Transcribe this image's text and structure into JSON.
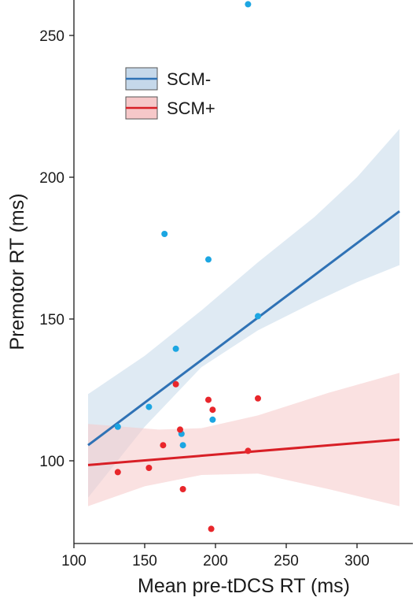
{
  "chart_data": {
    "type": "scatter",
    "xlabel": "Mean pre-tDCS RT (ms)",
    "ylabel": "Premotor RT (ms)",
    "xlim": [
      100,
      330
    ],
    "ylim": [
      70,
      262
    ],
    "xticks": [
      "100",
      "150",
      "200",
      "250",
      "300"
    ],
    "yticks": [
      "100",
      "150",
      "200",
      "250"
    ],
    "legend_position": "upper-left",
    "grid": false,
    "series": [
      {
        "name": "SCM-",
        "point_color": "#1ca6e2",
        "line_color": "#2f72b5",
        "band_color": "#c5d8ea",
        "points": [
          {
            "x": 131,
            "y": 112
          },
          {
            "x": 153,
            "y": 119
          },
          {
            "x": 164,
            "y": 180
          },
          {
            "x": 172,
            "y": 139.5
          },
          {
            "x": 176,
            "y": 109.5
          },
          {
            "x": 177,
            "y": 105.5
          },
          {
            "x": 195,
            "y": 171
          },
          {
            "x": 198,
            "y": 114.5
          },
          {
            "x": 223,
            "y": 261
          },
          {
            "x": 230,
            "y": 151
          }
        ],
        "fit": {
          "x0": 110,
          "y0": 105.5,
          "x1": 330,
          "y1": 188
        },
        "ci_upper": [
          [
            110,
            123.5
          ],
          [
            150,
            137
          ],
          [
            190,
            153
          ],
          [
            230,
            170
          ],
          [
            270,
            186
          ],
          [
            300,
            200
          ],
          [
            330,
            217
          ]
        ],
        "ci_lower": [
          [
            110,
            87
          ],
          [
            150,
            112
          ],
          [
            190,
            133
          ],
          [
            230,
            146
          ],
          [
            270,
            156
          ],
          [
            300,
            163
          ],
          [
            330,
            169
          ]
        ]
      },
      {
        "name": "SCM+",
        "point_color": "#e8262b",
        "line_color": "#d81f26",
        "band_color": "#f6c8c9",
        "points": [
          {
            "x": 131,
            "y": 96
          },
          {
            "x": 153,
            "y": 97.5
          },
          {
            "x": 163,
            "y": 105.5
          },
          {
            "x": 172,
            "y": 127
          },
          {
            "x": 175,
            "y": 111
          },
          {
            "x": 177,
            "y": 90
          },
          {
            "x": 195,
            "y": 121.5
          },
          {
            "x": 197,
            "y": 76
          },
          {
            "x": 198,
            "y": 118
          },
          {
            "x": 223,
            "y": 103.5
          },
          {
            "x": 230,
            "y": 122
          }
        ],
        "fit": {
          "x0": 110,
          "y0": 98.5,
          "x1": 330,
          "y1": 107.5
        },
        "ci_upper": [
          [
            110,
            113
          ],
          [
            160,
            111
          ],
          [
            190,
            111.5
          ],
          [
            230,
            116
          ],
          [
            280,
            124
          ],
          [
            330,
            131
          ]
        ],
        "ci_lower": [
          [
            110,
            84
          ],
          [
            150,
            91
          ],
          [
            190,
            95
          ],
          [
            230,
            95.5
          ],
          [
            280,
            90
          ],
          [
            330,
            84
          ]
        ]
      }
    ]
  }
}
